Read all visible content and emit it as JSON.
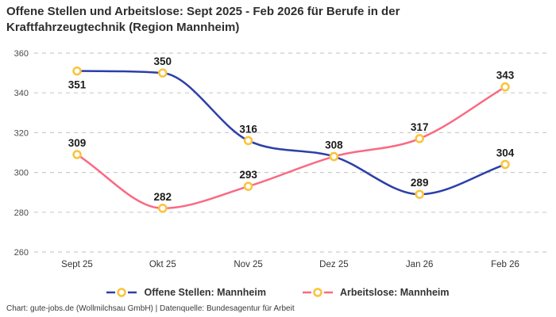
{
  "title": "Offene Stellen und Arbeitslose: Sept 2025 - Feb 2026 für Berufe in der Kraftfahrzeugtechnik (Region Mannheim)",
  "footer": "Chart: gute-jobs.de (Wollmilchsau GmbH) | Datenquelle: Bundesagentur für Arbeit",
  "colors": {
    "background": "#ffffff",
    "title_text": "#2e2e2e",
    "grid": "#cccccc",
    "y_tick_text": "#4a4a4a",
    "x_tick_text": "#333333",
    "data_label_text": "#1b1b1b",
    "marker_stroke": "#fac33c",
    "marker_fill": "#ffffff"
  },
  "chart_data": {
    "type": "line",
    "categories": [
      "Sept 25",
      "Okt 25",
      "Nov 25",
      "Dez 25",
      "Jan 26",
      "Feb 26"
    ],
    "series": [
      {
        "name": "Offene Stellen: Mannheim",
        "color": "#2b3fa9",
        "values": [
          351,
          350,
          316,
          308,
          289,
          304
        ],
        "label_visible": [
          true,
          true,
          true,
          false,
          true,
          true
        ],
        "label_position": [
          "below",
          "above",
          "above",
          "above",
          "above",
          "above"
        ]
      },
      {
        "name": "Arbeitslose: Mannheim",
        "color": "#fa6982",
        "values": [
          309,
          282,
          293,
          308,
          317,
          343
        ],
        "label_visible": [
          true,
          true,
          true,
          true,
          true,
          true
        ],
        "label_position": [
          "above",
          "above",
          "above",
          "above",
          "above",
          "above"
        ]
      }
    ],
    "ylim": [
      260,
      360
    ],
    "yticks": [
      260,
      280,
      300,
      320,
      340,
      360
    ],
    "grid": "horizontal-dashed",
    "curve": "monotone",
    "marker": "open-circle",
    "legend_position": "bottom"
  }
}
